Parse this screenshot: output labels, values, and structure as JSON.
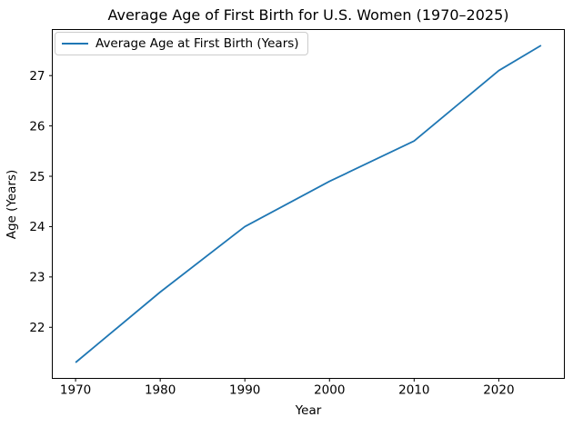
{
  "chart_data": {
    "type": "line",
    "title": "Average Age of First Birth for U.S. Women (1970–2025)",
    "xlabel": "Year",
    "ylabel": "Age (Years)",
    "x": [
      1970,
      1980,
      1990,
      2000,
      2010,
      2020,
      2025
    ],
    "series": [
      {
        "name": "Average Age at First Birth (Years)",
        "values": [
          21.3,
          22.7,
          24.0,
          24.9,
          25.7,
          27.1,
          27.6
        ]
      }
    ],
    "x_ticks": [
      1970,
      1980,
      1990,
      2000,
      2010,
      2020
    ],
    "y_ticks": [
      22,
      23,
      24,
      25,
      26,
      27
    ],
    "xlim": [
      1967.25,
      2027.75
    ],
    "ylim": [
      20.985,
      27.915
    ],
    "grid": false,
    "legend_position": "upper left",
    "line_color": "#1f77b4",
    "axis_color": "#000000",
    "background_color": "#ffffff"
  }
}
